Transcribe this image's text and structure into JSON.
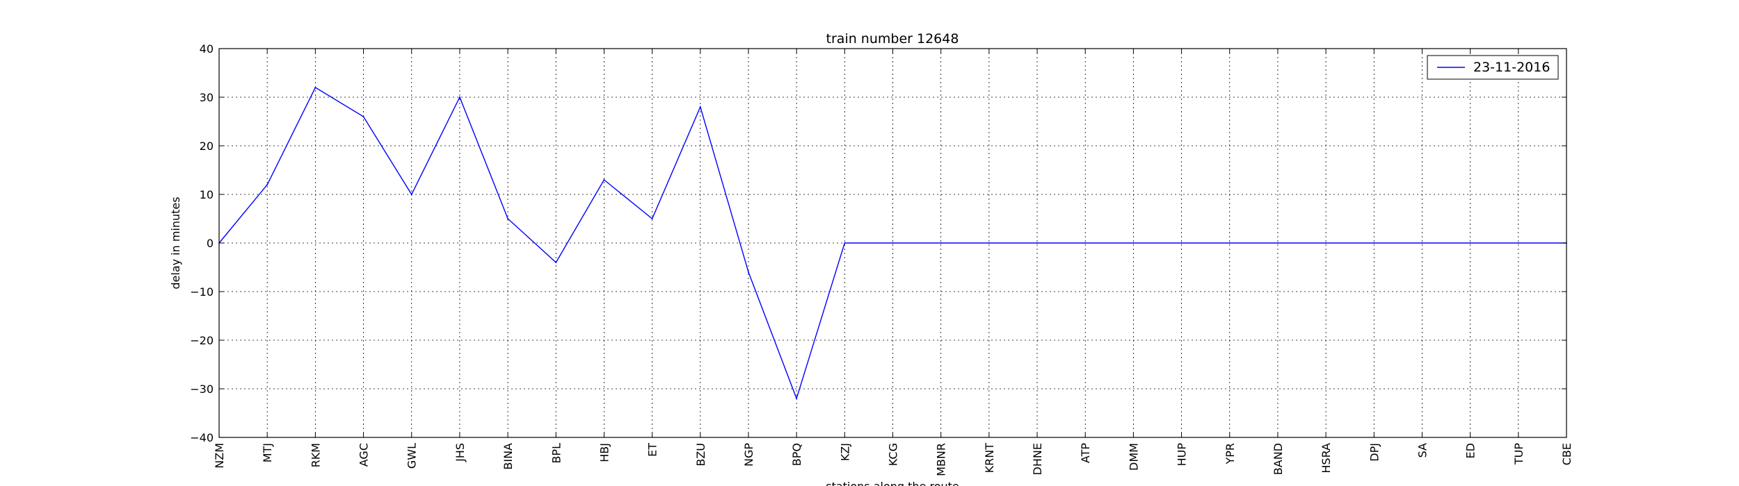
{
  "chart_data": {
    "type": "line",
    "title": "train number 12648",
    "xlabel": "stations along the route",
    "ylabel": "delay in minutes",
    "categories": [
      "NZM",
      "MTJ",
      "RKM",
      "AGC",
      "GWL",
      "JHS",
      "BINA",
      "BPL",
      "HBJ",
      "ET",
      "BZU",
      "NGP",
      "BPQ",
      "KZJ",
      "KCG",
      "MBNR",
      "KRNT",
      "DHNE",
      "ATP",
      "DMM",
      "HUP",
      "YPR",
      "BAND",
      "HSRA",
      "DPJ",
      "SA",
      "ED",
      "TUP",
      "CBE"
    ],
    "series": [
      {
        "name": "23-11-2016",
        "color": "#0000ff",
        "values": [
          0,
          12,
          32,
          26,
          10,
          30,
          5,
          -4,
          13,
          5,
          28,
          -6,
          -32,
          0,
          0,
          0,
          0,
          0,
          0,
          0,
          0,
          0,
          0,
          0,
          0,
          0,
          0,
          0,
          0
        ]
      }
    ],
    "ylim": [
      -40,
      40
    ],
    "yticks": [
      "40",
      "30",
      "20",
      "10",
      "0",
      "−10",
      "−20",
      "−30",
      "−40"
    ],
    "grid": true,
    "legend_position": "top-right"
  }
}
